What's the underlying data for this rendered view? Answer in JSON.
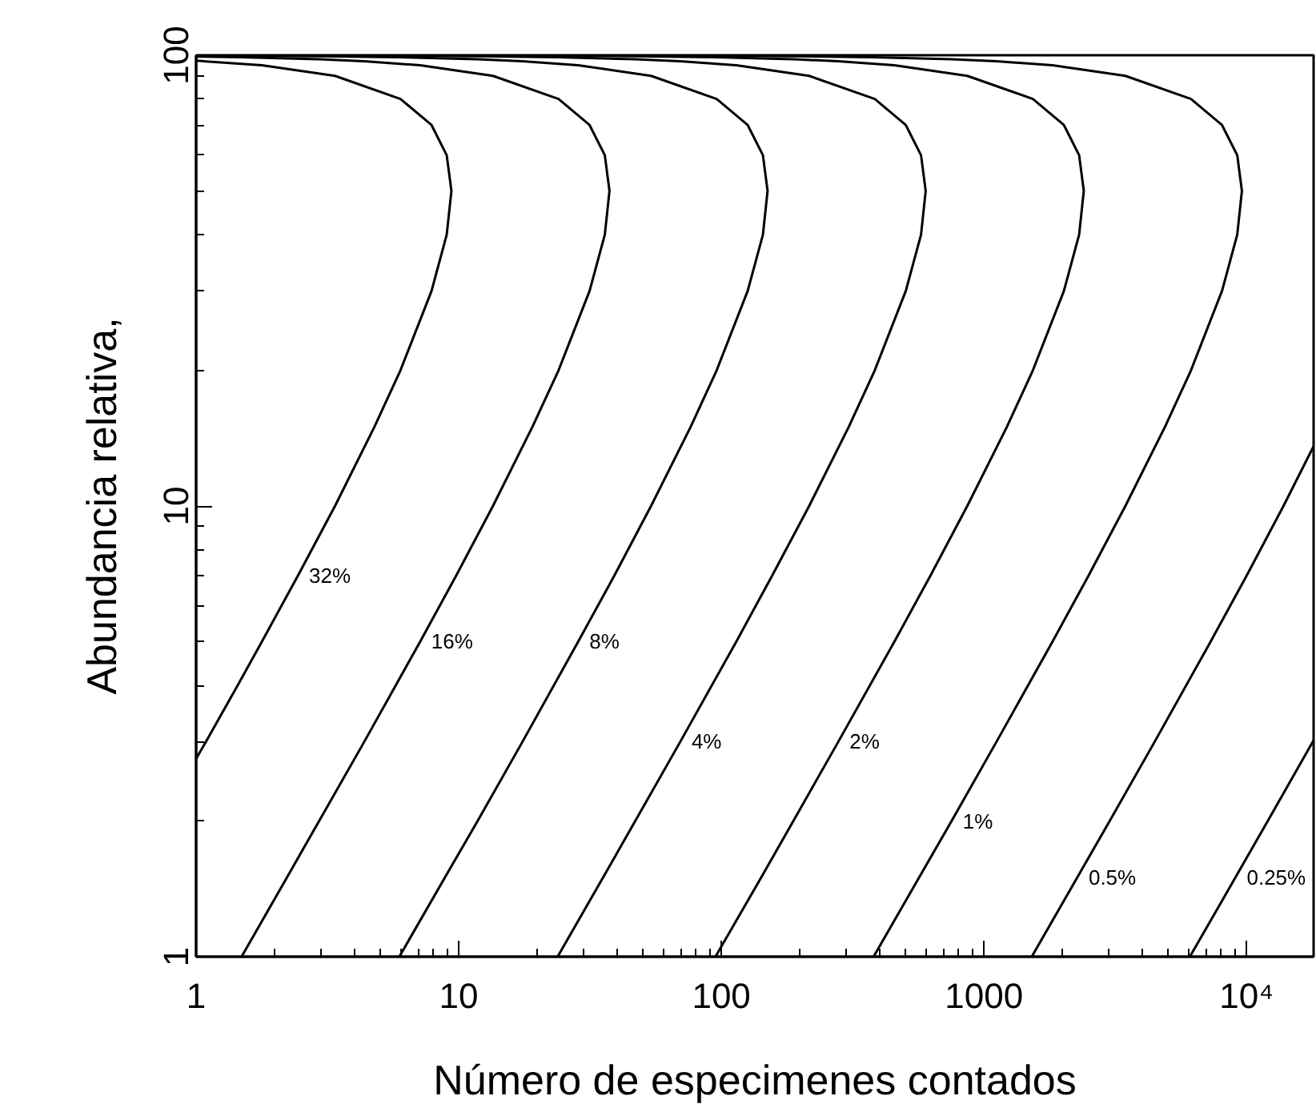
{
  "chart_data": {
    "type": "line",
    "xlabel": "Número de especimenes contados",
    "ylabel": "Abundancia relativa,",
    "log": "xy",
    "grid": false,
    "marker": "none",
    "line_style": "solid",
    "xlim": [
      1,
      18000
    ],
    "ylim": [
      1,
      100
    ],
    "xticks": [
      1,
      {
        "value": 2,
        "label": null
      },
      {
        "value": 3,
        "label": null
      },
      {
        "value": 4,
        "label": null
      },
      {
        "value": 5,
        "label": null
      },
      {
        "value": 6,
        "label": null
      },
      {
        "value": 7,
        "label": null
      },
      {
        "value": 8,
        "label": null
      },
      {
        "value": 9,
        "label": null
      },
      10,
      {
        "value": 20,
        "label": null
      },
      {
        "value": 30,
        "label": null
      },
      {
        "value": 40,
        "label": null
      },
      {
        "value": 50,
        "label": null
      },
      {
        "value": 60,
        "label": null
      },
      {
        "value": 70,
        "label": null
      },
      {
        "value": 80,
        "label": null
      },
      {
        "value": 90,
        "label": null
      },
      100,
      {
        "value": 200,
        "label": null
      },
      {
        "value": 300,
        "label": null
      },
      {
        "value": 400,
        "label": null
      },
      {
        "value": 500,
        "label": null
      },
      {
        "value": 600,
        "label": null
      },
      {
        "value": 700,
        "label": null
      },
      {
        "value": 800,
        "label": null
      },
      {
        "value": 900,
        "label": null
      },
      1000,
      {
        "value": 2000,
        "label": null
      },
      {
        "value": 3000,
        "label": null
      },
      {
        "value": 4000,
        "label": null
      },
      {
        "value": 5000,
        "label": null
      },
      {
        "value": 6000,
        "label": null
      },
      {
        "value": 7000,
        "label": null
      },
      {
        "value": 8000,
        "label": null
      },
      {
        "value": 9000,
        "label": null
      },
      {
        "value": 10000,
        "label": "10⁴"
      }
    ],
    "yticks": [
      1,
      {
        "value": 2,
        "label": null
      },
      {
        "value": 3,
        "label": null
      },
      {
        "value": 4,
        "label": null
      },
      {
        "value": 5,
        "label": null
      },
      {
        "value": 6,
        "label": null
      },
      {
        "value": 7,
        "label": null
      },
      {
        "value": 8,
        "label": null
      },
      {
        "value": 9,
        "label": null
      },
      10,
      {
        "value": 20,
        "label": null
      },
      {
        "value": 30,
        "label": null
      },
      {
        "value": 40,
        "label": null
      },
      {
        "value": 50,
        "label": null
      },
      {
        "value": 60,
        "label": null
      },
      {
        "value": 70,
        "label": null
      },
      {
        "value": 80,
        "label": null
      },
      {
        "value": 90,
        "label": null
      },
      100
    ],
    "series": [
      {
        "color": "#000000",
        "x": [
          1.0,
          1.09,
          1.44,
          1.78,
          2.44,
          3.38,
          4.78,
          6.0,
          7.88,
          9.0,
          9.38,
          9.0,
          7.88,
          6.0,
          3.38,
          1.78,
          1.0
        ],
        "values": [
          2.75,
          3,
          4,
          5,
          7,
          10,
          15,
          20,
          30,
          40,
          50,
          60,
          70,
          80,
          90,
          95,
          97.25
        ]
      },
      {
        "color": "#000000",
        "x": [
          1.49,
          2.22,
          2.94,
          4.37,
          7.13,
          9.77,
          13.5,
          19.1,
          24.0,
          31.5,
          36.0,
          37.5,
          36.0,
          31.5,
          24.0,
          13.5,
          7.13,
          4.37,
          2.94,
          1.49,
          1.0
        ],
        "values": [
          1,
          1.5,
          2,
          3,
          5,
          7,
          10,
          15,
          20,
          30,
          40,
          50,
          60,
          70,
          80,
          90,
          95,
          97,
          98,
          99,
          99.33
        ]
      },
      {
        "color": "#000000",
        "x": [
          5.94,
          8.87,
          11.8,
          17.5,
          28.5,
          39.1,
          54,
          76.5,
          96,
          126,
          144,
          150,
          144,
          126,
          96,
          54,
          28.5,
          17.5,
          11.8,
          5.94,
          2.99,
          1.0
        ],
        "values": [
          1,
          1.5,
          2,
          3,
          5,
          7,
          10,
          15,
          20,
          30,
          40,
          50,
          60,
          70,
          80,
          90,
          95,
          97,
          98,
          99,
          99.5,
          99.83
        ]
      },
      {
        "color": "#000000",
        "x": [
          23.8,
          35.5,
          47.0,
          69.8,
          114,
          156,
          216,
          306,
          384,
          504,
          576,
          600,
          576,
          504,
          384,
          216,
          114,
          69.8,
          47.0,
          23.8,
          11.9,
          4.79,
          2.4,
          1.0
        ],
        "values": [
          1,
          1.5,
          2,
          3,
          5,
          7,
          10,
          15,
          20,
          30,
          40,
          50,
          60,
          70,
          80,
          90,
          95,
          97,
          98,
          99,
          99.5,
          99.8,
          99.9,
          99.96
        ]
      },
      {
        "color": "#000000",
        "x": [
          95,
          142,
          188,
          279,
          456,
          625,
          864,
          1224,
          1536,
          2016,
          2304,
          2400,
          2304,
          2016,
          1536,
          864,
          456,
          279,
          188,
          95,
          47.8,
          19.2,
          9.6,
          1.0
        ],
        "values": [
          1,
          1.5,
          2,
          3,
          5,
          7,
          10,
          15,
          20,
          30,
          40,
          50,
          60,
          70,
          80,
          90,
          95,
          97,
          98,
          99,
          99.5,
          99.8,
          99.9,
          99.99
        ]
      },
      {
        "color": "#000000",
        "x": [
          380,
          567,
          753,
          1117,
          1824,
          2500,
          3456,
          4896,
          6144,
          8064,
          9216,
          9600,
          9216,
          8064,
          6144,
          3456,
          1824,
          1117,
          753,
          380,
          191,
          76.6,
          38.4,
          3.84
        ],
        "values": [
          1,
          1.5,
          2,
          3,
          5,
          7,
          10,
          15,
          20,
          30,
          40,
          50,
          60,
          70,
          80,
          90,
          95,
          97,
          98,
          99,
          99.5,
          99.8,
          99.9,
          99.99
        ]
      },
      {
        "color": "#000000",
        "x": [
          1521,
          2269,
          3011,
          4470,
          7296,
          10000,
          13824,
          18000
        ],
        "values": [
          1,
          1.5,
          2,
          3,
          5,
          7,
          10,
          13.56
        ]
      },
      {
        "color": "#000000",
        "x": [
          6083,
          9078,
          12042,
          18000
        ],
        "values": [
          1,
          1.5,
          2,
          3.02
        ]
      }
    ],
    "annotations": [
      {
        "text": "32%",
        "x": 2.44,
        "y": 7
      },
      {
        "text": "16%",
        "x": 7.13,
        "y": 5
      },
      {
        "text": "8%",
        "x": 28.5,
        "y": 5
      },
      {
        "text": "4%",
        "x": 69.8,
        "y": 3
      },
      {
        "text": "2%",
        "x": 279,
        "y": 3
      },
      {
        "text": "1%",
        "x": 753,
        "y": 2
      },
      {
        "text": "0.5%",
        "x": 2269,
        "y": 1.5
      },
      {
        "text": "0.25%",
        "x": 9078,
        "y": 1.5
      }
    ]
  }
}
